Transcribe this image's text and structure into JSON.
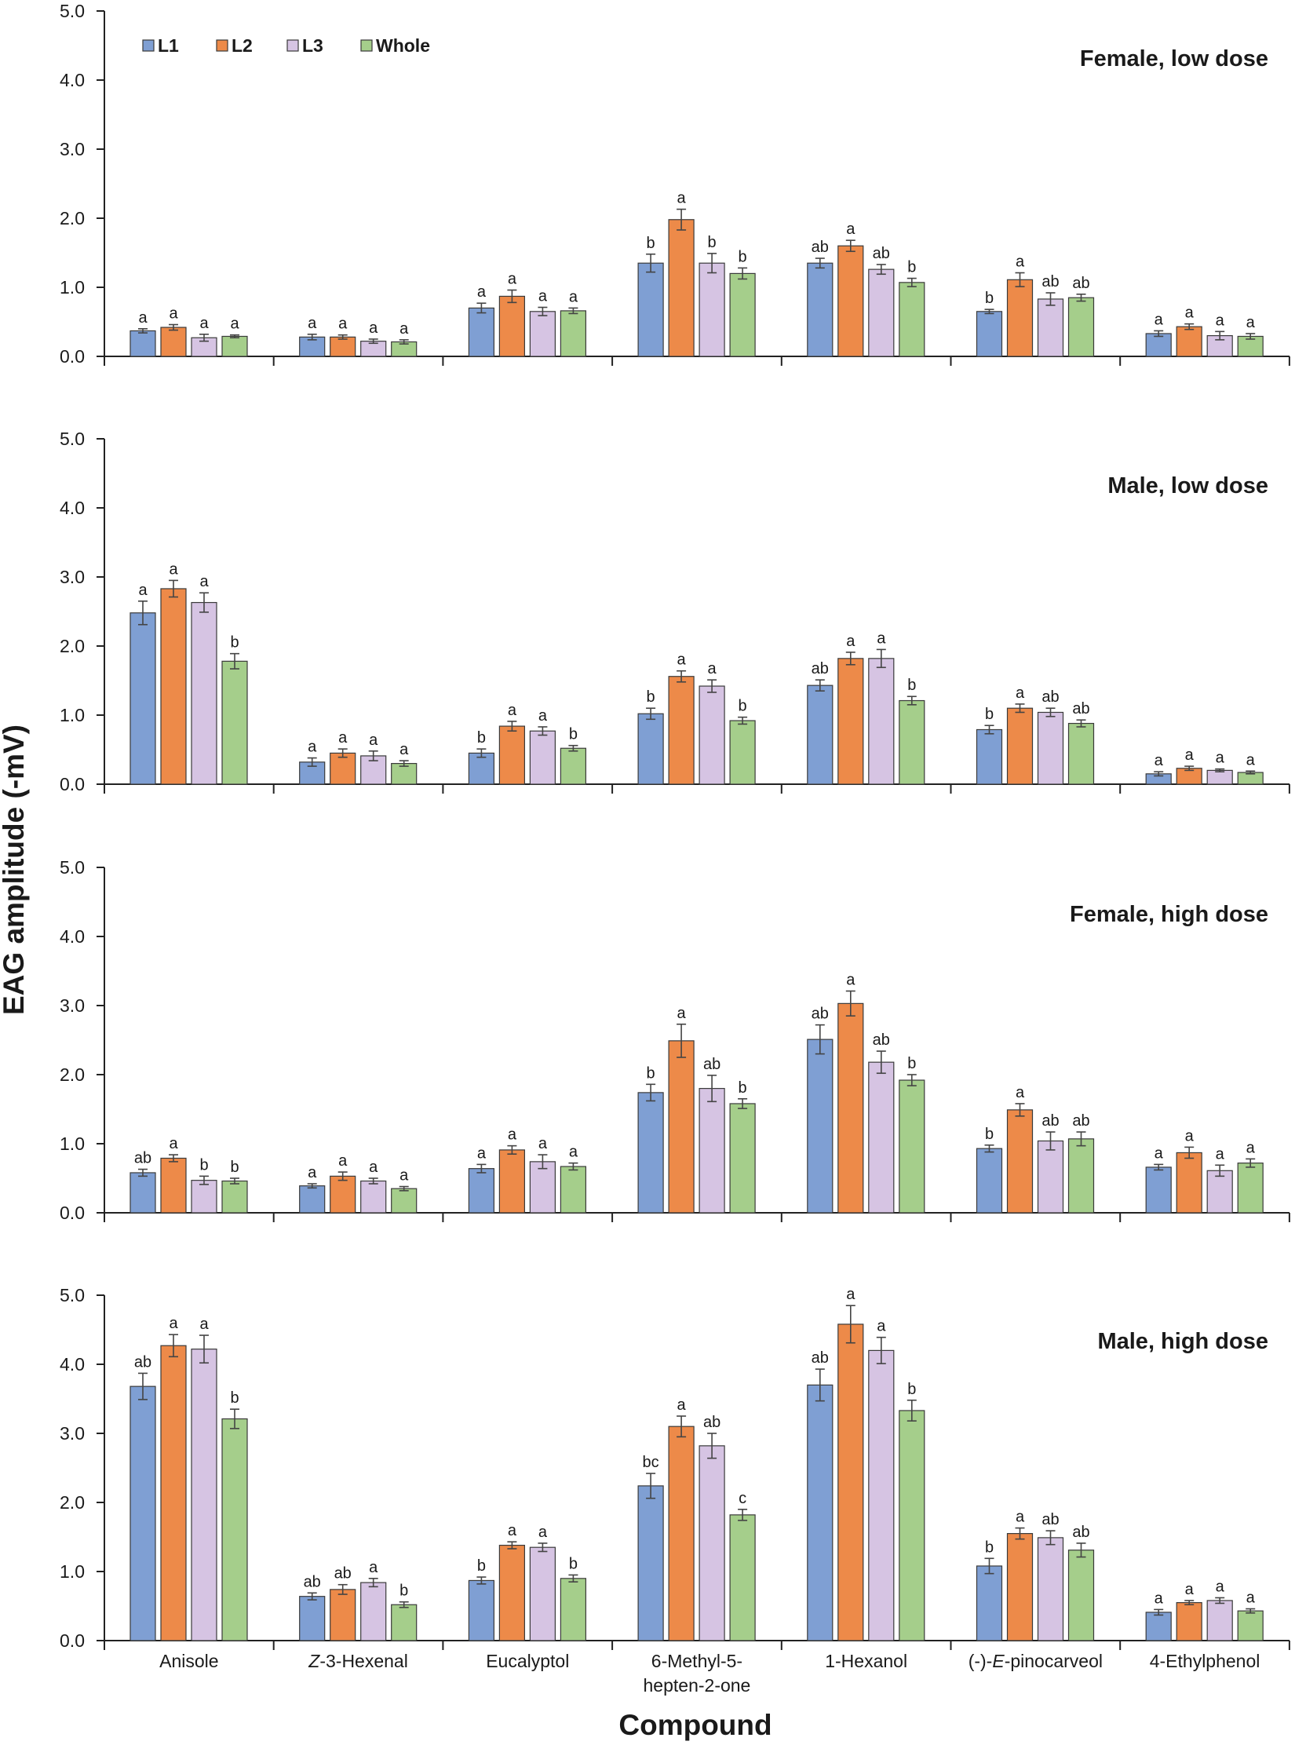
{
  "chart_data": {
    "type": "bar",
    "ylabel": "EAG amplitude (-mV)",
    "xlabel": "Compound",
    "ylim": [
      0,
      5
    ],
    "yticks": [
      "0.0",
      "1.0",
      "2.0",
      "3.0",
      "4.0",
      "5.0"
    ],
    "grid": false,
    "legend_position": "top-left",
    "categories": [
      {
        "text": "Anisole"
      },
      {
        "prefix": "",
        "italic": "Z",
        "suffix": "-3-Hexenal"
      },
      {
        "text": "Eucalyptol"
      },
      {
        "lines": [
          "6-Methyl-5-",
          "hepten-2-one"
        ]
      },
      {
        "text": "1-Hexanol"
      },
      {
        "prefix": "(-)-",
        "italic": "E",
        "suffix": "-pinocarveol"
      },
      {
        "text": "4-Ethylphenol"
      }
    ],
    "series": [
      {
        "name": "L1",
        "color": "#7f9fd3"
      },
      {
        "name": "L2",
        "color": "#ed8a49"
      },
      {
        "name": "L3",
        "color": "#d6c4e3"
      },
      {
        "name": "Whole",
        "color": "#a5ce8b"
      }
    ],
    "panels": [
      {
        "title": "Female, low dose",
        "values": [
          [
            0.37,
            0.42,
            0.27,
            0.29
          ],
          [
            0.28,
            0.28,
            0.22,
            0.21
          ],
          [
            0.7,
            0.87,
            0.65,
            0.66
          ],
          [
            1.35,
            1.98,
            1.35,
            1.2
          ],
          [
            1.35,
            1.6,
            1.26,
            1.07
          ],
          [
            0.65,
            1.11,
            0.83,
            0.85
          ],
          [
            0.33,
            0.43,
            0.3,
            0.29
          ]
        ],
        "errors": [
          [
            0.03,
            0.04,
            0.05,
            0.02
          ],
          [
            0.04,
            0.03,
            0.03,
            0.03
          ],
          [
            0.07,
            0.09,
            0.06,
            0.04
          ],
          [
            0.13,
            0.15,
            0.14,
            0.08
          ],
          [
            0.07,
            0.08,
            0.07,
            0.06
          ],
          [
            0.03,
            0.1,
            0.09,
            0.05
          ],
          [
            0.04,
            0.04,
            0.06,
            0.04
          ]
        ],
        "letters": [
          [
            "a",
            "a",
            "a",
            "a"
          ],
          [
            "a",
            "a",
            "a",
            "a"
          ],
          [
            "a",
            "a",
            "a",
            "a"
          ],
          [
            "b",
            "a",
            "b",
            "b"
          ],
          [
            "ab",
            "a",
            "ab",
            "b"
          ],
          [
            "b",
            "a",
            "ab",
            "ab"
          ],
          [
            "a",
            "a",
            "a",
            "a"
          ]
        ]
      },
      {
        "title": "Male, low dose",
        "values": [
          [
            2.48,
            2.83,
            2.63,
            1.78
          ],
          [
            0.32,
            0.45,
            0.41,
            0.3
          ],
          [
            0.45,
            0.84,
            0.77,
            0.52
          ],
          [
            1.02,
            1.56,
            1.42,
            0.92
          ],
          [
            1.43,
            1.82,
            1.82,
            1.21
          ],
          [
            0.79,
            1.1,
            1.04,
            0.88
          ],
          [
            0.15,
            0.23,
            0.2,
            0.17
          ]
        ],
        "errors": [
          [
            0.17,
            0.12,
            0.14,
            0.11
          ],
          [
            0.06,
            0.06,
            0.07,
            0.04
          ],
          [
            0.06,
            0.07,
            0.06,
            0.04
          ],
          [
            0.08,
            0.08,
            0.09,
            0.05
          ],
          [
            0.08,
            0.09,
            0.13,
            0.06
          ],
          [
            0.06,
            0.06,
            0.06,
            0.05
          ],
          [
            0.03,
            0.03,
            0.02,
            0.02
          ]
        ],
        "letters": [
          [
            "a",
            "a",
            "a",
            "b"
          ],
          [
            "a",
            "a",
            "a",
            "a"
          ],
          [
            "b",
            "a",
            "a",
            "b"
          ],
          [
            "b",
            "a",
            "a",
            "b"
          ],
          [
            "ab",
            "a",
            "a",
            "b"
          ],
          [
            "b",
            "a",
            "ab",
            "ab"
          ],
          [
            "a",
            "a",
            "a",
            "a"
          ]
        ]
      },
      {
        "title": "Female, high dose",
        "values": [
          [
            0.58,
            0.79,
            0.47,
            0.46
          ],
          [
            0.39,
            0.53,
            0.46,
            0.35
          ],
          [
            0.64,
            0.91,
            0.74,
            0.67
          ],
          [
            1.74,
            2.49,
            1.8,
            1.58
          ],
          [
            2.51,
            3.03,
            2.18,
            1.92
          ],
          [
            0.93,
            1.49,
            1.04,
            1.07
          ],
          [
            0.66,
            0.87,
            0.61,
            0.72
          ]
        ],
        "errors": [
          [
            0.05,
            0.05,
            0.06,
            0.04
          ],
          [
            0.03,
            0.06,
            0.04,
            0.03
          ],
          [
            0.06,
            0.06,
            0.1,
            0.05
          ],
          [
            0.12,
            0.24,
            0.19,
            0.07
          ],
          [
            0.21,
            0.18,
            0.16,
            0.08
          ],
          [
            0.05,
            0.09,
            0.13,
            0.1
          ],
          [
            0.04,
            0.08,
            0.08,
            0.06
          ]
        ],
        "letters": [
          [
            "ab",
            "a",
            "b",
            "b"
          ],
          [
            "a",
            "a",
            "a",
            "a"
          ],
          [
            "a",
            "a",
            "a",
            "a"
          ],
          [
            "b",
            "a",
            "ab",
            "b"
          ],
          [
            "ab",
            "a",
            "ab",
            "b"
          ],
          [
            "b",
            "a",
            "ab",
            "ab"
          ],
          [
            "a",
            "a",
            "a",
            "a"
          ]
        ]
      },
      {
        "title": "Male, high dose",
        "values": [
          [
            3.68,
            4.27,
            4.22,
            3.21
          ],
          [
            0.64,
            0.74,
            0.84,
            0.52
          ],
          [
            0.87,
            1.38,
            1.35,
            0.9
          ],
          [
            2.24,
            3.1,
            2.82,
            1.82
          ],
          [
            3.7,
            4.58,
            4.2,
            3.33
          ],
          [
            1.08,
            1.55,
            1.49,
            1.31
          ],
          [
            0.41,
            0.55,
            0.58,
            0.43
          ]
        ],
        "errors": [
          [
            0.19,
            0.16,
            0.2,
            0.14
          ],
          [
            0.05,
            0.07,
            0.06,
            0.04
          ],
          [
            0.05,
            0.05,
            0.06,
            0.05
          ],
          [
            0.18,
            0.15,
            0.18,
            0.08
          ],
          [
            0.23,
            0.27,
            0.19,
            0.15
          ],
          [
            0.11,
            0.08,
            0.1,
            0.1
          ],
          [
            0.04,
            0.03,
            0.04,
            0.03
          ]
        ],
        "letters": [
          [
            "ab",
            "a",
            "a",
            "b"
          ],
          [
            "ab",
            "ab",
            "a",
            "b"
          ],
          [
            "b",
            "a",
            "a",
            "b"
          ],
          [
            "bc",
            "a",
            "ab",
            "c"
          ],
          [
            "ab",
            "a",
            "a",
            "b"
          ],
          [
            "b",
            "a",
            "ab",
            "ab"
          ],
          [
            "a",
            "a",
            "a",
            "a"
          ]
        ]
      }
    ]
  }
}
